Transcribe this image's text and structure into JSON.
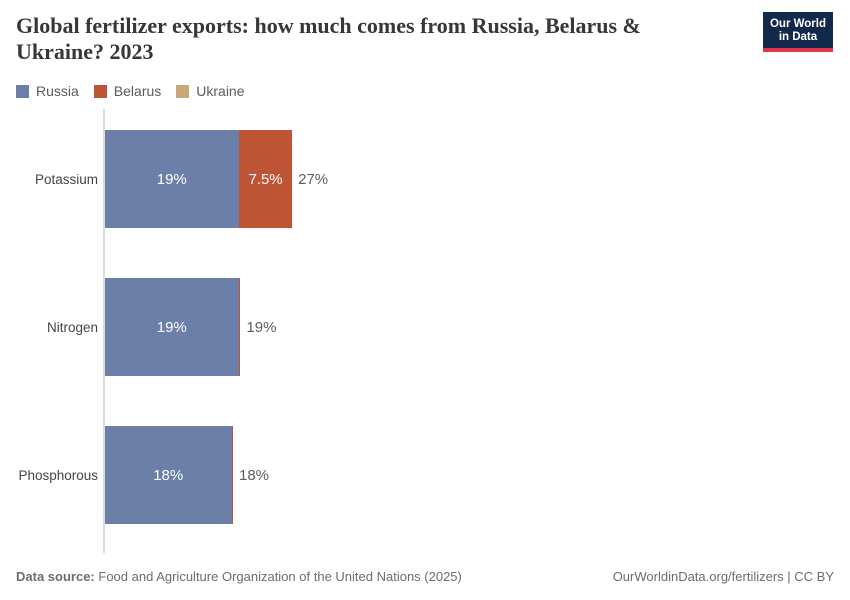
{
  "header": {
    "title": "Global fertilizer exports: how much comes from Russia, Belarus & Ukraine? 2023"
  },
  "logo": {
    "line1": "Our World",
    "line2": "in Data",
    "bg_color": "#12294b",
    "accent_color": "#e0364a"
  },
  "legend": [
    {
      "label": "Russia",
      "color": "#6c7fa8"
    },
    {
      "label": "Belarus",
      "color": "#bf5336"
    },
    {
      "label": "Ukraine",
      "color": "#c9a878"
    }
  ],
  "chart_data": {
    "type": "bar",
    "orientation": "horizontal",
    "stacked": true,
    "title": "Global fertilizer exports: how much comes from Russia, Belarus & Ukraine? 2023",
    "categories": [
      "Potassium",
      "Nitrogen",
      "Phosphorous"
    ],
    "series": [
      {
        "name": "Russia",
        "color": "#6c7fa8",
        "values": [
          19,
          19,
          18
        ],
        "labels": [
          "19%",
          "19%",
          "18%"
        ]
      },
      {
        "name": "Belarus",
        "color": "#bf5336",
        "values": [
          7.5,
          0.2,
          0.15
        ],
        "labels": [
          "7.5%",
          "",
          ""
        ]
      },
      {
        "name": "Ukraine",
        "color": "#c9a878",
        "values": [
          0,
          0,
          0
        ],
        "labels": [
          "",
          "",
          ""
        ]
      }
    ],
    "totals": [
      "27%",
      "19%",
      "18%"
    ],
    "xlim": [
      0,
      100
    ],
    "grid": false,
    "legend_position": "top"
  },
  "footer": {
    "source_label": "Data source:",
    "source_text": "Food and Agriculture Organization of the United Nations (2025)",
    "right_text": "OurWorldinData.org/fertilizers | CC BY"
  }
}
